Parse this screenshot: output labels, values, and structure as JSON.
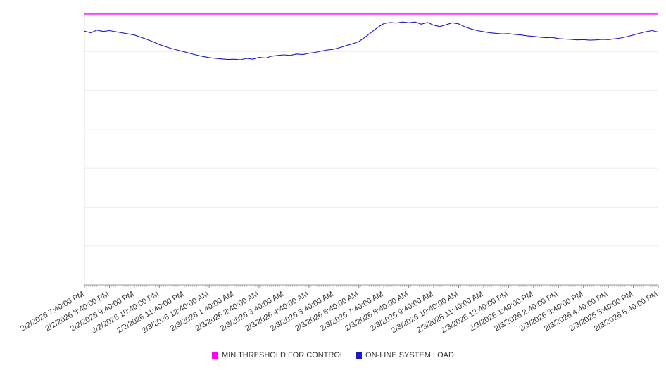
{
  "chart_data": {
    "type": "line",
    "title": "",
    "xlabel": "",
    "ylabel": "",
    "ylim": [
      0,
      100
    ],
    "grid": "horizontal",
    "grid_divisions": 7,
    "legend_position": "bottom",
    "sample_interval_minutes": 15,
    "x_tick_labels": [
      "2/2/2026 7:40:00 PM",
      "2/2/2026 8:40:00 PM",
      "2/2/2026 9:40:00 PM",
      "2/2/2026 10:40:00 PM",
      "2/2/2026 11:40:00 PM",
      "2/3/2026 12:40:00 AM",
      "2/3/2026 1:40:00 AM",
      "2/3/2026 2:40:00 AM",
      "2/3/2026 3:40:00 AM",
      "2/3/2026 4:40:00 AM",
      "2/3/2026 5:40:00 AM",
      "2/3/2026 6:40:00 AM",
      "2/3/2026 7:40:00 AM",
      "2/3/2026 8:40:00 AM",
      "2/3/2026 9:40:00 AM",
      "2/3/2026 10:40:00 AM",
      "2/3/2026 11:40:00 AM",
      "2/3/2026 12:40:00 PM",
      "2/3/2026 1:40:00 PM",
      "2/3/2026 2:40:00 PM",
      "2/3/2026 3:40:00 PM",
      "2/3/2026 4:40:00 PM",
      "2/3/2026 5:40:00 PM",
      "2/3/2026 6:40:00 PM"
    ],
    "series": [
      {
        "name": "MIN THRESHOLD FOR CONTROL",
        "color": "#ff00ff",
        "value": 99.5
      },
      {
        "name": "ON-LINE SYSTEM LOAD",
        "color": "#1a1acc",
        "values": [
          93.2,
          92.6,
          93.6,
          93.1,
          93.4,
          93.0,
          92.6,
          92.2,
          91.8,
          91.0,
          90.2,
          89.3,
          88.3,
          87.5,
          86.8,
          86.2,
          85.6,
          85.0,
          84.4,
          83.9,
          83.5,
          83.2,
          83.0,
          82.8,
          82.9,
          82.7,
          83.2,
          82.9,
          83.6,
          83.3,
          84.0,
          84.3,
          84.5,
          84.3,
          84.8,
          84.6,
          85.1,
          85.4,
          85.9,
          86.3,
          86.6,
          87.2,
          87.9,
          88.6,
          89.4,
          91.0,
          92.8,
          94.6,
          96.0,
          96.4,
          96.2,
          96.6,
          96.3,
          96.6,
          95.8,
          96.4,
          95.4,
          94.9,
          95.6,
          96.3,
          95.9,
          94.8,
          94.0,
          93.4,
          93.0,
          92.6,
          92.4,
          92.2,
          92.3,
          92.0,
          91.8,
          91.5,
          91.3,
          91.0,
          90.8,
          90.9,
          90.5,
          90.3,
          90.2,
          90.0,
          90.1,
          89.9,
          90.0,
          90.2,
          90.1,
          90.4,
          90.7,
          91.2,
          91.8,
          92.4,
          93.0,
          93.4,
          92.9
        ]
      }
    ]
  },
  "legend": {
    "items": [
      {
        "label": "MIN THRESHOLD FOR CONTROL",
        "color": "#ff00ff"
      },
      {
        "label": "ON-LINE SYSTEM LOAD",
        "color": "#1a1acc"
      }
    ]
  }
}
